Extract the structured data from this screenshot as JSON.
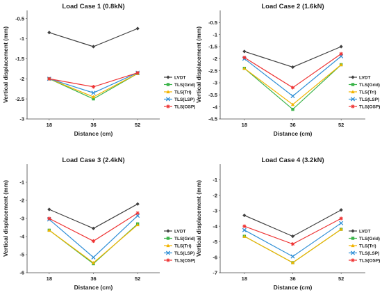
{
  "chart_data": [
    {
      "type": "line",
      "title": "Load Case 1 (0.8kN)",
      "xlabel": "Distance (cm)",
      "ylabel": "Vertical displacement (mm)",
      "categories": [
        "18",
        "36",
        "52"
      ],
      "yticks": [
        "-0.5",
        "-1",
        "-1.5",
        "-2",
        "-2.5",
        "-3"
      ],
      "ylim": [
        -3,
        -0.3
      ],
      "legend_position": "right",
      "series": [
        {
          "name": "LVDT",
          "values": [
            -0.85,
            -1.2,
            -0.75
          ],
          "color": "#404040",
          "marker": "diamond"
        },
        {
          "name": "TLS(Grid)",
          "values": [
            -2.0,
            -2.5,
            -1.87
          ],
          "color": "#3cb44b",
          "marker": "square"
        },
        {
          "name": "TLS(Tri)",
          "values": [
            -2.0,
            -2.45,
            -1.87
          ],
          "color": "#f2b400",
          "marker": "triangle"
        },
        {
          "name": "TLS(LSP)",
          "values": [
            -2.0,
            -2.35,
            -1.85
          ],
          "color": "#2d8ed6",
          "marker": "cross"
        },
        {
          "name": "TLS(OSP)",
          "values": [
            -2.0,
            -2.2,
            -1.85
          ],
          "color": "#ee3333",
          "marker": "star"
        }
      ]
    },
    {
      "type": "line",
      "title": "Load Case 2 (1.6kN)",
      "xlabel": "Distance (cm)",
      "ylabel": "Vertical displacement (mm)",
      "categories": [
        "18",
        "36",
        "52"
      ],
      "yticks": [
        "-0.5",
        "-1",
        "-1.5",
        "-2",
        "-2.5",
        "-3",
        "-3.5",
        "-4",
        "-4.5"
      ],
      "ylim": [
        -4.5,
        0
      ],
      "legend_position": "right",
      "series": [
        {
          "name": "LVDT",
          "values": [
            -1.7,
            -2.35,
            -1.5
          ],
          "color": "#404040",
          "marker": "diamond"
        },
        {
          "name": "TLS(Grid)",
          "values": [
            -2.4,
            -4.1,
            -2.25
          ],
          "color": "#3cb44b",
          "marker": "square"
        },
        {
          "name": "TLS(Tri)",
          "values": [
            -2.4,
            -3.9,
            -2.25
          ],
          "color": "#f2b400",
          "marker": "triangle"
        },
        {
          "name": "TLS(LSP)",
          "values": [
            -2.0,
            -3.55,
            -1.9
          ],
          "color": "#2d8ed6",
          "marker": "cross"
        },
        {
          "name": "TLS(OSP)",
          "values": [
            -1.95,
            -3.2,
            -1.8
          ],
          "color": "#ee3333",
          "marker": "star"
        }
      ]
    },
    {
      "type": "line",
      "title": "Load Case 3 (2.4kN)",
      "xlabel": "Distance (cm)",
      "ylabel": "Vertical displacement (mm)",
      "categories": [
        "18",
        "36",
        "52"
      ],
      "yticks": [
        "-1",
        "-2",
        "-3",
        "-4",
        "-5",
        "-6"
      ],
      "ylim": [
        -6,
        0
      ],
      "legend_position": "right",
      "series": [
        {
          "name": "LVDT",
          "values": [
            -2.5,
            -3.55,
            -2.2
          ],
          "color": "#404040",
          "marker": "diamond"
        },
        {
          "name": "TLS(Grid)",
          "values": [
            -3.65,
            -5.5,
            -3.3
          ],
          "color": "#3cb44b",
          "marker": "square"
        },
        {
          "name": "TLS(Tri)",
          "values": [
            -3.65,
            -5.45,
            -3.35
          ],
          "color": "#f2b400",
          "marker": "triangle"
        },
        {
          "name": "TLS(LSP)",
          "values": [
            -3.05,
            -5.15,
            -2.85
          ],
          "color": "#2d8ed6",
          "marker": "cross"
        },
        {
          "name": "TLS(OSP)",
          "values": [
            -3.0,
            -4.25,
            -2.7
          ],
          "color": "#ee3333",
          "marker": "star"
        }
      ]
    },
    {
      "type": "line",
      "title": "Load Case 4 (3.2kN)",
      "xlabel": "Distance (cm)",
      "ylabel": "Vertical displacement (mm)",
      "categories": [
        "18",
        "36",
        "52"
      ],
      "yticks": [
        "-1",
        "-2",
        "-3",
        "-4",
        "-5",
        "-6",
        "-7"
      ],
      "ylim": [
        -7,
        0
      ],
      "legend_position": "right",
      "series": [
        {
          "name": "LVDT",
          "values": [
            -3.3,
            -4.65,
            -2.95
          ],
          "color": "#404040",
          "marker": "diamond"
        },
        {
          "name": "TLS(Grid)",
          "values": [
            -4.65,
            -6.35,
            -4.2
          ],
          "color": "#3cb44b",
          "marker": "square"
        },
        {
          "name": "TLS(Tri)",
          "values": [
            -4.65,
            -6.35,
            -4.2
          ],
          "color": "#f2b400",
          "marker": "triangle"
        },
        {
          "name": "TLS(LSP)",
          "values": [
            -4.25,
            -5.95,
            -3.8
          ],
          "color": "#2d8ed6",
          "marker": "cross"
        },
        {
          "name": "TLS(OSP)",
          "values": [
            -4.0,
            -5.15,
            -3.5
          ],
          "color": "#ee3333",
          "marker": "star"
        }
      ]
    }
  ]
}
